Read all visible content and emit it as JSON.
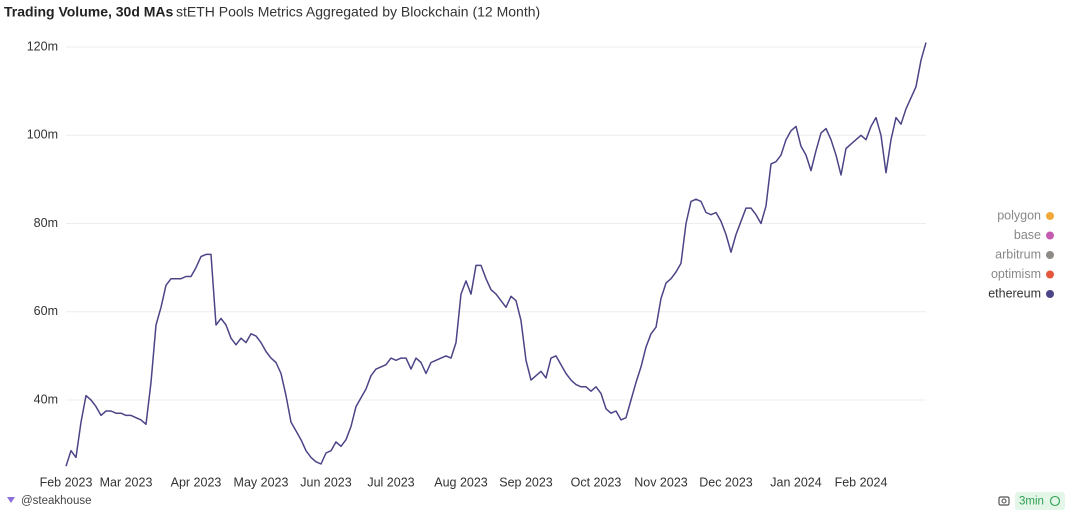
{
  "chart_data": {
    "type": "line",
    "title": "Trading Volume, 30d MAs",
    "subtitle": "stETH Pools Metrics Aggregated by Blockchain (12 Month)",
    "categories": [
      "Feb 2023",
      null,
      null,
      null,
      null,
      null,
      null,
      null,
      null,
      null,
      null,
      null,
      "Mar 2023",
      null,
      null,
      null,
      null,
      null,
      null,
      null,
      null,
      null,
      null,
      null,
      null,
      null,
      "Apr 2023",
      null,
      null,
      null,
      null,
      null,
      null,
      null,
      null,
      null,
      null,
      null,
      null,
      "May 2023",
      null,
      null,
      null,
      null,
      null,
      null,
      null,
      null,
      null,
      null,
      null,
      null,
      "Jun 2023",
      null,
      null,
      null,
      null,
      null,
      null,
      null,
      null,
      null,
      null,
      null,
      null,
      "Jul 2023",
      null,
      null,
      null,
      null,
      null,
      null,
      null,
      null,
      null,
      null,
      null,
      null,
      null,
      "Aug 2023",
      null,
      null,
      null,
      null,
      null,
      null,
      null,
      null,
      null,
      null,
      null,
      null,
      "Sep 2023",
      null,
      null,
      null,
      null,
      null,
      null,
      null,
      null,
      null,
      null,
      null,
      null,
      null,
      "Oct 2023",
      null,
      null,
      null,
      null,
      null,
      null,
      null,
      null,
      null,
      null,
      null,
      null,
      "Nov 2023",
      null,
      null,
      null,
      null,
      null,
      null,
      null,
      null,
      null,
      null,
      null,
      null,
      "Dec 2023",
      null,
      null,
      null,
      null,
      null,
      null,
      null,
      null,
      null,
      null,
      null,
      null,
      null,
      "Jan 2024",
      null,
      null,
      null,
      null,
      null,
      null,
      null,
      null,
      null,
      null,
      null,
      null,
      "Feb 2024",
      null,
      null,
      null,
      null,
      null,
      null,
      null,
      null,
      null,
      null,
      null,
      null,
      null
    ],
    "series": [
      {
        "name": "ethereum",
        "color": "#4b4587",
        "values": [
          25,
          28.5,
          27,
          35,
          41,
          40,
          38.5,
          36.5,
          37.5,
          37.5,
          37,
          37,
          36.5,
          36.5,
          36,
          35.5,
          34.5,
          44,
          57,
          61,
          66,
          67.5,
          67.5,
          67.5,
          68,
          68,
          70,
          72.5,
          73,
          73,
          57,
          58.5,
          57,
          54,
          52.5,
          54,
          53,
          55,
          54.5,
          53,
          51,
          49.5,
          48.5,
          46,
          41,
          35,
          33,
          31,
          28.5,
          27,
          26,
          25.5,
          28,
          28.5,
          30.5,
          29.5,
          31,
          34,
          38.5,
          40.5,
          42.5,
          45.5,
          47,
          47.5,
          48,
          49.5,
          49,
          49.5,
          49.5,
          47,
          49.5,
          48.5,
          46,
          48.5,
          49,
          49.5,
          50,
          49.5,
          53,
          64,
          67,
          64,
          70.5,
          70.5,
          67.5,
          65,
          64,
          62.5,
          61,
          63.5,
          62.5,
          58,
          49,
          44.5,
          45.5,
          46.5,
          45,
          49.5,
          50,
          48,
          46,
          44.5,
          43.5,
          43,
          43,
          42,
          43,
          41.5,
          38,
          37,
          37.5,
          35.5,
          36,
          40,
          44,
          47.5,
          52,
          55,
          56.5,
          63,
          66.5,
          67.5,
          69,
          71,
          80,
          85,
          85.5,
          85,
          82.5,
          82,
          82.5,
          80.5,
          77.5,
          73.5,
          77.5,
          80.5,
          83.5,
          83.5,
          82,
          80,
          84,
          93.5,
          94,
          95.5,
          99,
          101,
          102,
          97.5,
          95.5,
          92,
          96.5,
          100.5,
          101.5,
          99,
          95.5,
          91,
          97,
          98,
          99,
          100,
          99,
          102,
          104,
          100,
          91.5,
          99,
          104,
          102.5,
          106,
          108.5,
          111,
          117,
          121
        ]
      }
    ],
    "hidden_series": [
      {
        "name": "polygon",
        "color": "#f2a93b"
      },
      {
        "name": "base",
        "color": "#c45bb0"
      },
      {
        "name": "arbitrum",
        "color": "#8e8b87"
      },
      {
        "name": "optimism",
        "color": "#e4573d"
      }
    ],
    "ylim": [
      24,
      121
    ],
    "yticks": [
      {
        "value": 40,
        "label": "40m"
      },
      {
        "value": 60,
        "label": "60m"
      },
      {
        "value": 80,
        "label": "80m"
      },
      {
        "value": 100,
        "label": "100m"
      },
      {
        "value": 120,
        "label": "120m"
      }
    ],
    "grid": true,
    "legend": "right"
  },
  "footer": {
    "author": "@steakhouse",
    "badge": "3min"
  }
}
